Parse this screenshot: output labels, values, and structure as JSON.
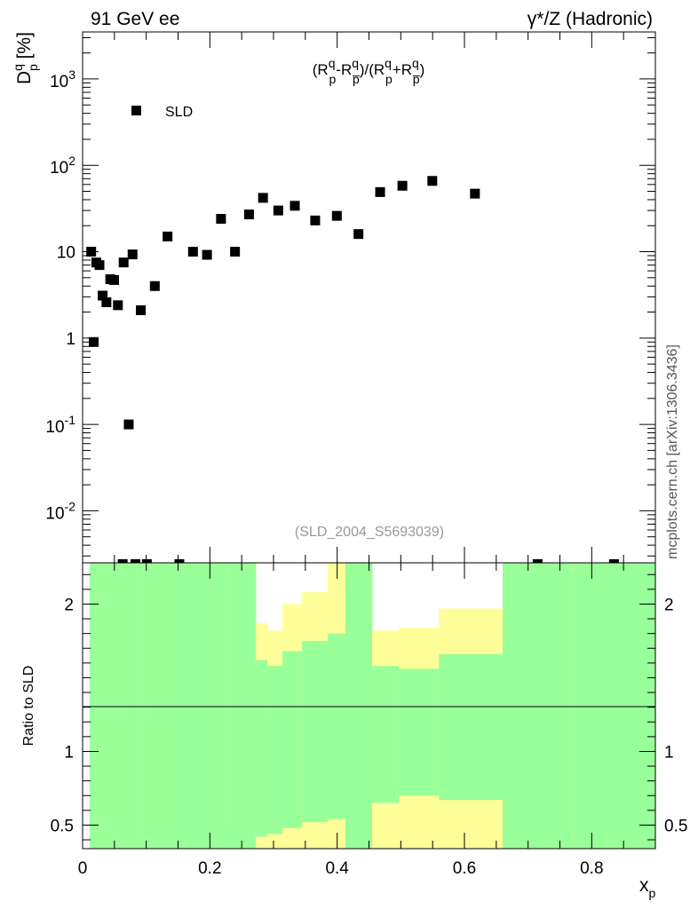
{
  "header": {
    "left": "91 GeV ee",
    "right": "γ*/Z (Hadronic)"
  },
  "side_label": "mcplots.cern.ch [arXiv:1306.3436]",
  "chart_data": [
    {
      "type": "scatter",
      "panel": "main",
      "formula": "(Rₚᵠ-Rₚ̅ᵠ)/(Rₚᵠ+Rₚ̅ᵠ)",
      "ylabel": "Dₚᵠ [%]",
      "watermark": "(SLD_2004_S5693039)",
      "xlim": [
        0,
        0.9
      ],
      "ylim": [
        0.0025,
        3500
      ],
      "yscale": "log",
      "grid": false,
      "legend_position": "top-left",
      "y_tick_labels": [
        {
          "value": 0.01,
          "base": "10",
          "exp": "-2"
        },
        {
          "value": 0.1,
          "base": "10",
          "exp": "-1"
        },
        {
          "value": 1,
          "base": "1",
          "exp": ""
        },
        {
          "value": 10,
          "base": "10",
          "exp": ""
        },
        {
          "value": 100,
          "base": "10",
          "exp": "2"
        },
        {
          "value": 1000,
          "base": "10",
          "exp": "3"
        }
      ],
      "series": [
        {
          "name": "SLD",
          "marker": "square",
          "color": "#000000",
          "x": [
            0.0135,
            0.0175,
            0.0215,
            0.0265,
            0.0315,
            0.0375,
            0.0435,
            0.0495,
            0.0555,
            0.0645,
            0.0725,
            0.0785,
            0.0915,
            0.1135,
            0.1335,
            0.1735,
            0.1955,
            0.2175,
            0.2395,
            0.2615,
            0.2835,
            0.3075,
            0.3335,
            0.3655,
            0.3995,
            0.4335,
            0.4675,
            0.5025,
            0.5495,
            0.6165
          ],
          "y": [
            10,
            0.9,
            7.5,
            7.0,
            3.1,
            2.6,
            4.8,
            4.7,
            2.4,
            7.5,
            0.1,
            9.3,
            2.1,
            4.0,
            15,
            10,
            9.2,
            24,
            10,
            27,
            42,
            30,
            34,
            23,
            26,
            16,
            49,
            58,
            66,
            47
          ]
        }
      ],
      "offscale_low_x": [
        0.063,
        0.083,
        0.101,
        0.152,
        0.715,
        0.835
      ]
    },
    {
      "type": "area",
      "panel": "ratio",
      "ylabel": "Ratio to SLD",
      "xlabel": "xₚ",
      "xlim": [
        0,
        0.9
      ],
      "ylim": [
        0.34,
        2.28
      ],
      "x_ticks": [
        0,
        0.2,
        0.4,
        0.6,
        0.8
      ],
      "y_ticks": [
        0.5,
        1,
        2
      ],
      "reference_line": 1,
      "bands": {
        "green_color": "#99ff99",
        "yellow_color": "#ffff99",
        "bin_edges": [
          0.011,
          0.017,
          0.021,
          0.026,
          0.031,
          0.036,
          0.042,
          0.048,
          0.054,
          0.06,
          0.068,
          0.074,
          0.084,
          0.1,
          0.127,
          0.145,
          0.205,
          0.23,
          0.251,
          0.272,
          0.29,
          0.314,
          0.345,
          0.385,
          0.413,
          0.455,
          0.497,
          0.56,
          0.66,
          0.77,
          0.9
        ],
        "yellow_low": [
          0.34,
          0.34,
          0.34,
          0.34,
          0.34,
          0.34,
          0.34,
          0.34,
          0.34,
          0.34,
          0.34,
          0.34,
          0.34,
          0.34,
          0.34,
          0.34,
          0.34,
          0.46,
          0.34,
          0.34,
          0.34,
          0.34,
          0.34,
          0.34,
          0.34,
          0.34,
          0.34,
          0.34,
          0.34,
          0.34
        ],
        "green_low": [
          0.34,
          0.34,
          0.34,
          0.34,
          0.34,
          0.34,
          0.34,
          0.34,
          0.34,
          0.34,
          0.34,
          0.34,
          0.34,
          0.34,
          0.34,
          0.34,
          0.34,
          0.34,
          0.34,
          0.42,
          0.44,
          0.48,
          0.52,
          0.54,
          0.34,
          0.65,
          0.7,
          0.67,
          0.34,
          0.34
        ],
        "green_high": [
          2.28,
          2.28,
          2.28,
          2.28,
          2.28,
          2.28,
          2.28,
          2.28,
          2.28,
          2.28,
          2.28,
          2.28,
          2.28,
          2.28,
          2.28,
          2.28,
          2.28,
          2.28,
          2.28,
          1.62,
          1.58,
          1.68,
          1.75,
          1.8,
          2.28,
          1.58,
          1.56,
          1.66,
          2.28,
          2.28
        ],
        "yellow_high": [
          2.28,
          2.28,
          2.28,
          2.28,
          2.28,
          2.28,
          2.28,
          2.28,
          2.28,
          2.28,
          2.28,
          2.28,
          2.28,
          2.28,
          2.28,
          2.28,
          2.28,
          2.28,
          2.28,
          1.87,
          1.82,
          2.0,
          2.08,
          2.28,
          2.28,
          1.82,
          1.84,
          1.97,
          2.28,
          2.28
        ]
      }
    }
  ]
}
